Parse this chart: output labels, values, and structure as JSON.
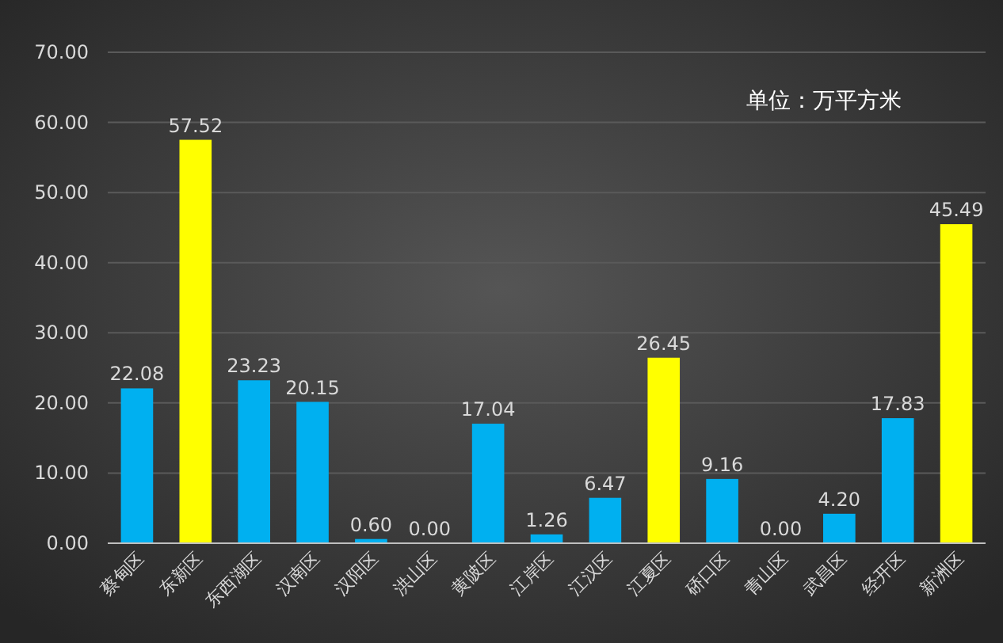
{
  "chart_data": {
    "type": "bar",
    "categories": [
      "蔡甸区",
      "东新区",
      "东西湖区",
      "汉南区",
      "汉阳区",
      "洪山区",
      "黄陂区",
      "江岸区",
      "江汉区",
      "江夏区",
      "硚口区",
      "青山区",
      "武昌区",
      "经开区",
      "新洲区"
    ],
    "values": [
      22.08,
      57.52,
      23.23,
      20.15,
      0.6,
      0.0,
      17.04,
      1.26,
      6.47,
      26.45,
      9.16,
      0.0,
      4.2,
      17.83,
      45.49
    ],
    "value_labels": [
      "22.08",
      "57.52",
      "23.23",
      "20.15",
      "0.60",
      "0.00",
      "17.04",
      "1.26",
      "6.47",
      "26.45",
      "9.16",
      "0.00",
      "4.20",
      "17.83",
      "45.49"
    ],
    "colors": [
      "#00b0f0",
      "#ffff00",
      "#00b0f0",
      "#00b0f0",
      "#00b0f0",
      "#00b0f0",
      "#00b0f0",
      "#00b0f0",
      "#00b0f0",
      "#ffff00",
      "#00b0f0",
      "#00b0f0",
      "#00b0f0",
      "#00b0f0",
      "#ffff00"
    ],
    "ylim": [
      0,
      70
    ],
    "yticks": [
      {
        "value": 0,
        "label": "0.00"
      },
      {
        "value": 10,
        "label": "10.00"
      },
      {
        "value": 20,
        "label": "20.00"
      },
      {
        "value": 30,
        "label": "30.00"
      },
      {
        "value": 40,
        "label": "40.00"
      },
      {
        "value": 50,
        "label": "50.00"
      },
      {
        "value": 60,
        "label": "60.00"
      },
      {
        "value": 70,
        "label": "70.00"
      }
    ],
    "grid": "y",
    "annotations": [
      "单位：万平方米"
    ]
  }
}
